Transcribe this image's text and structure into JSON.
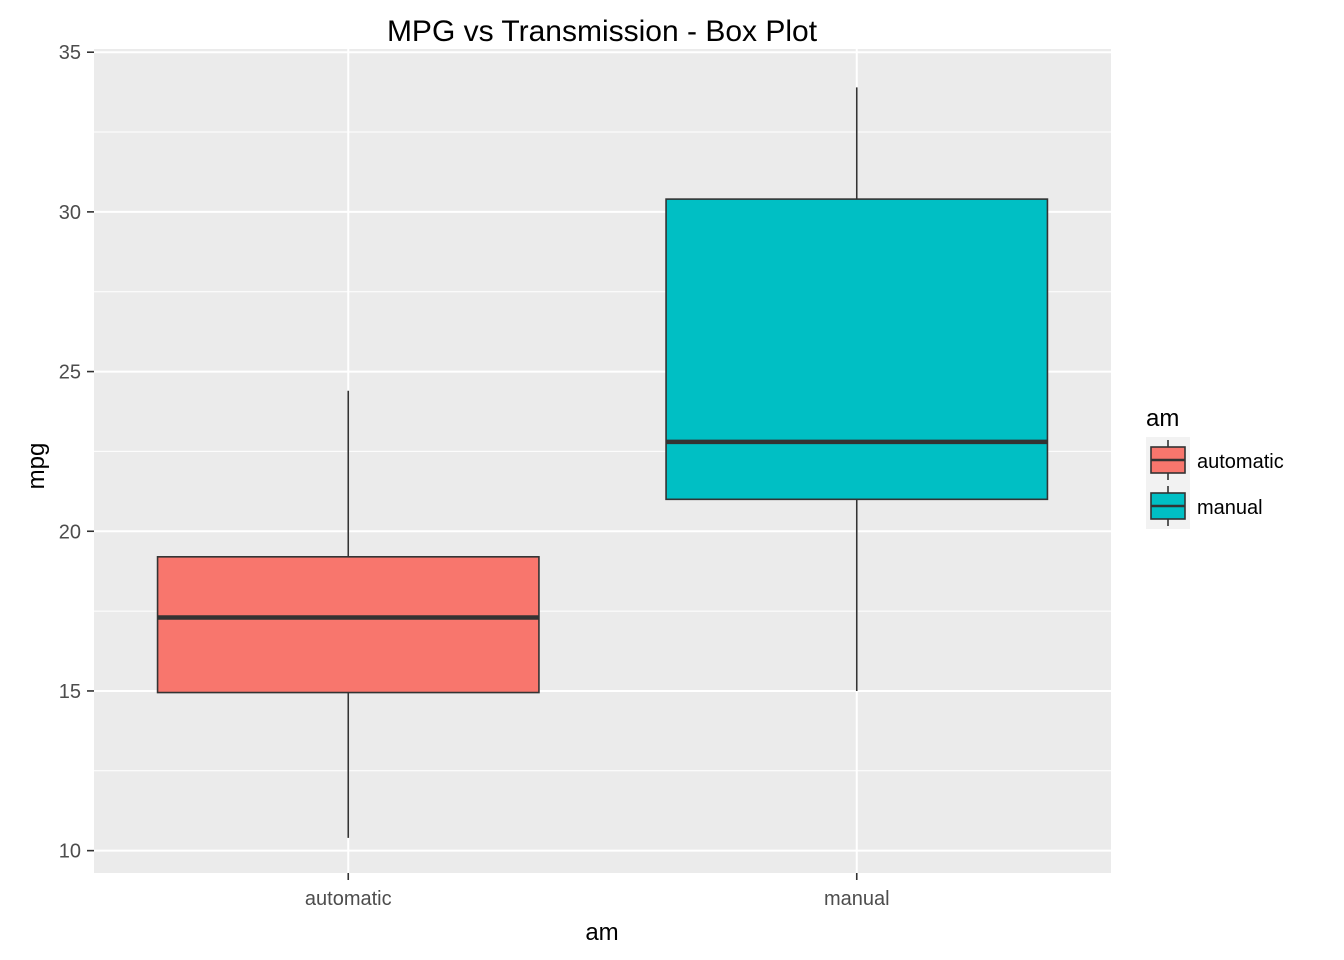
{
  "chart_data": {
    "type": "box",
    "title": "MPG vs Transmission - Box Plot",
    "xlabel": "am",
    "ylabel": "mpg",
    "ylim": [
      9.3,
      35.1
    ],
    "yticks": [
      10,
      15,
      20,
      25,
      30,
      35
    ],
    "grid": true,
    "legend": {
      "title": "am",
      "position": "right",
      "entries": [
        "automatic",
        "manual"
      ]
    },
    "categories": [
      "automatic",
      "manual"
    ],
    "series": [
      {
        "name": "automatic",
        "color": "#F8766D",
        "whisker_low": 10.4,
        "q1": 14.95,
        "median": 17.3,
        "q3": 19.2,
        "whisker_high": 24.4
      },
      {
        "name": "manual",
        "color": "#00BFC4",
        "whisker_low": 15.0,
        "q1": 21.0,
        "median": 22.8,
        "q3": 30.4,
        "whisker_high": 33.9
      }
    ],
    "colors": {
      "panel": "#EBEBEB",
      "grid": "#FFFFFF",
      "box_outline": "#333333"
    }
  }
}
